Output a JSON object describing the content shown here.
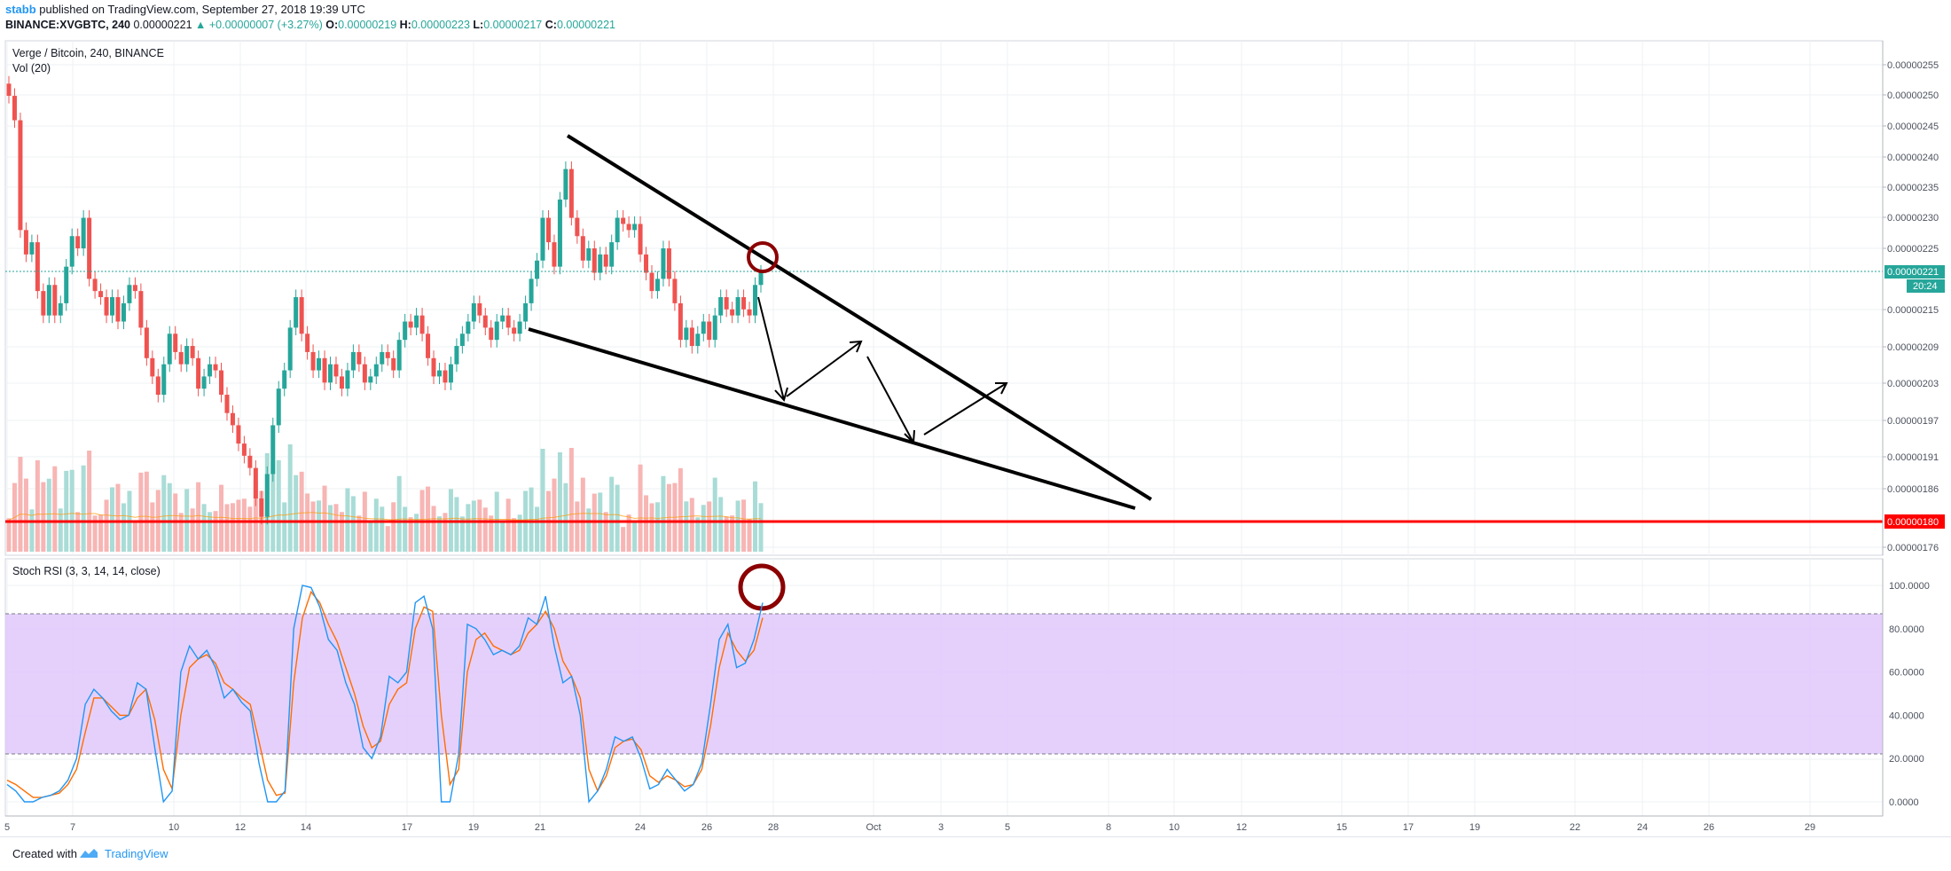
{
  "header": {
    "user": "stabb",
    "published": "published on TradingView.com, September 27, 2018 19:39 UTC",
    "symbol_line": "BINANCE:XVGBTC, 240",
    "last": "0.00000221",
    "change": "▲ +0.00000007 (+3.27%)",
    "o_label": "O:",
    "o_val": "0.00000219",
    "h_label": "H:",
    "h_val": "0.00000223",
    "l_label": "L:",
    "l_val": "0.00000217",
    "c_label": "C:",
    "c_val": "0.00000221"
  },
  "legend": {
    "title": "Verge / Bitcoin, 240, BINANCE",
    "volume": "Vol (20)",
    "stoch": "Stoch RSI (3, 3, 14, 14, close)"
  },
  "price_badge": {
    "price": "0.00000221",
    "countdown": "20:24",
    "support": "0.00000180"
  },
  "footer": {
    "created": "Created with",
    "brand": "TradingView"
  },
  "colors": {
    "up": "#26a69a",
    "down": "#ef5350",
    "support": "#ff0000",
    "rsi_band": "#e1c8fb",
    "k_line": "#2196f3",
    "d_line": "#ff6d00",
    "circle": "#8b0000"
  },
  "chart_data": [
    {
      "type": "candlestick",
      "title": "Verge / Bitcoin, 240, BINANCE",
      "y_ticks": [
        "0.00000255",
        "0.00000250",
        "0.00000245",
        "0.00000240",
        "0.00000235",
        "0.00000230",
        "0.00000225",
        "0.00000215",
        "0.00000209",
        "0.00000203",
        "0.00000197",
        "0.00000191",
        "0.00000186",
        "0.00000176"
      ],
      "x_ticks": [
        "5",
        "7",
        "10",
        "12",
        "14",
        "17",
        "19",
        "21",
        "24",
        "26",
        "28",
        "Oct",
        "3",
        "5",
        "8",
        "10",
        "12",
        "15",
        "17",
        "19",
        "22",
        "24",
        "26",
        "29"
      ],
      "ylim": [
        1.75e-06,
        2.58e-06
      ],
      "support_level": 1.8e-06,
      "last_price": 2.21e-06,
      "closes": [
        2.5e-06,
        2.46e-06,
        2.28e-06,
        2.24e-06,
        2.26e-06,
        2.18e-06,
        2.14e-06,
        2.19e-06,
        2.14e-06,
        2.16e-06,
        2.22e-06,
        2.27e-06,
        2.25e-06,
        2.3e-06,
        2.2e-06,
        2.18e-06,
        2.17e-06,
        2.14e-06,
        2.17e-06,
        2.13e-06,
        2.16e-06,
        2.19e-06,
        2.18e-06,
        2.12e-06,
        2.07e-06,
        2.04e-06,
        2.01e-06,
        2.06e-06,
        2.11e-06,
        2.08e-06,
        2.06e-06,
        2.09e-06,
        2.07e-06,
        2.02e-06,
        2.04e-06,
        2.06e-06,
        2.05e-06,
        2.01e-06,
        1.98e-06,
        1.96e-06,
        1.93e-06,
        1.91e-06,
        1.89e-06,
        1.84e-06,
        1.81e-06,
        1.88e-06,
        1.96e-06,
        2.02e-06,
        2.05e-06,
        2.12e-06,
        2.17e-06,
        2.11e-06,
        2.08e-06,
        2.05e-06,
        2.07e-06,
        2.03e-06,
        2.06e-06,
        2.04e-06,
        2.02e-06,
        2.05e-06,
        2.08e-06,
        2.06e-06,
        2.03e-06,
        2.04e-06,
        2.06e-06,
        2.08e-06,
        2.07e-06,
        2.05e-06,
        2.1e-06,
        2.13e-06,
        2.12e-06,
        2.14e-06,
        2.11e-06,
        2.07e-06,
        2.04e-06,
        2.05e-06,
        2.03e-06,
        2.06e-06,
        2.09e-06,
        2.11e-06,
        2.13e-06,
        2.16e-06,
        2.14e-06,
        2.12e-06,
        2.1e-06,
        2.13e-06,
        2.14e-06,
        2.12e-06,
        2.11e-06,
        2.13e-06,
        2.16e-06,
        2.2e-06,
        2.23e-06,
        2.3e-06,
        2.26e-06,
        2.22e-06,
        2.33e-06,
        2.38e-06,
        2.3e-06,
        2.27e-06,
        2.23e-06,
        2.25e-06,
        2.21e-06,
        2.24e-06,
        2.22e-06,
        2.26e-06,
        2.3e-06,
        2.29e-06,
        2.28e-06,
        2.29e-06,
        2.24e-06,
        2.21e-06,
        2.18e-06,
        2.2e-06,
        2.25e-06,
        2.2e-06,
        2.16e-06,
        2.1e-06,
        2.12e-06,
        2.09e-06,
        2.11e-06,
        2.13e-06,
        2.1e-06,
        2.14e-06,
        2.17e-06,
        2.15e-06,
        2.14e-06,
        2.17e-06,
        2.15e-06,
        2.14e-06,
        2.19e-06,
        2.21e-06
      ]
    },
    {
      "type": "line",
      "title": "Stoch RSI (3, 3, 14, 14, close)",
      "y_ticks": [
        "100.0000",
        "80.0000",
        "60.0000",
        "40.0000",
        "20.0000",
        "0.0000"
      ],
      "ylim": [
        -5,
        103
      ],
      "band": [
        20,
        80
      ],
      "series": [
        {
          "name": "%K",
          "values": [
            8,
            5,
            0,
            0,
            2,
            3,
            5,
            10,
            20,
            45,
            52,
            48,
            42,
            38,
            40,
            55,
            52,
            25,
            0,
            5,
            60,
            72,
            66,
            70,
            62,
            48,
            52,
            46,
            42,
            18,
            0,
            0,
            5,
            80,
            100,
            99,
            90,
            75,
            70,
            55,
            45,
            25,
            20,
            30,
            58,
            55,
            60,
            92,
            95,
            80,
            0,
            0,
            22,
            82,
            80,
            75,
            68,
            70,
            68,
            72,
            85,
            82,
            95,
            72,
            55,
            58,
            40,
            0,
            5,
            15,
            30,
            28,
            30,
            20,
            6,
            8,
            15,
            10,
            5,
            8,
            18,
            45,
            75,
            82,
            62,
            64,
            75,
            92
          ]
        },
        {
          "name": "%D",
          "values": [
            10,
            8,
            5,
            2,
            2,
            3,
            4,
            8,
            15,
            32,
            48,
            48,
            44,
            40,
            40,
            48,
            52,
            38,
            15,
            6,
            40,
            62,
            66,
            68,
            64,
            55,
            52,
            48,
            45,
            28,
            10,
            3,
            4,
            55,
            85,
            97,
            92,
            82,
            74,
            62,
            50,
            35,
            25,
            28,
            45,
            52,
            55,
            80,
            90,
            88,
            40,
            8,
            15,
            60,
            75,
            78,
            72,
            70,
            68,
            70,
            78,
            82,
            88,
            80,
            65,
            58,
            48,
            15,
            5,
            12,
            25,
            28,
            29,
            24,
            12,
            9,
            12,
            10,
            7,
            8,
            15,
            35,
            62,
            78,
            70,
            65,
            70,
            85
          ]
        }
      ]
    }
  ]
}
